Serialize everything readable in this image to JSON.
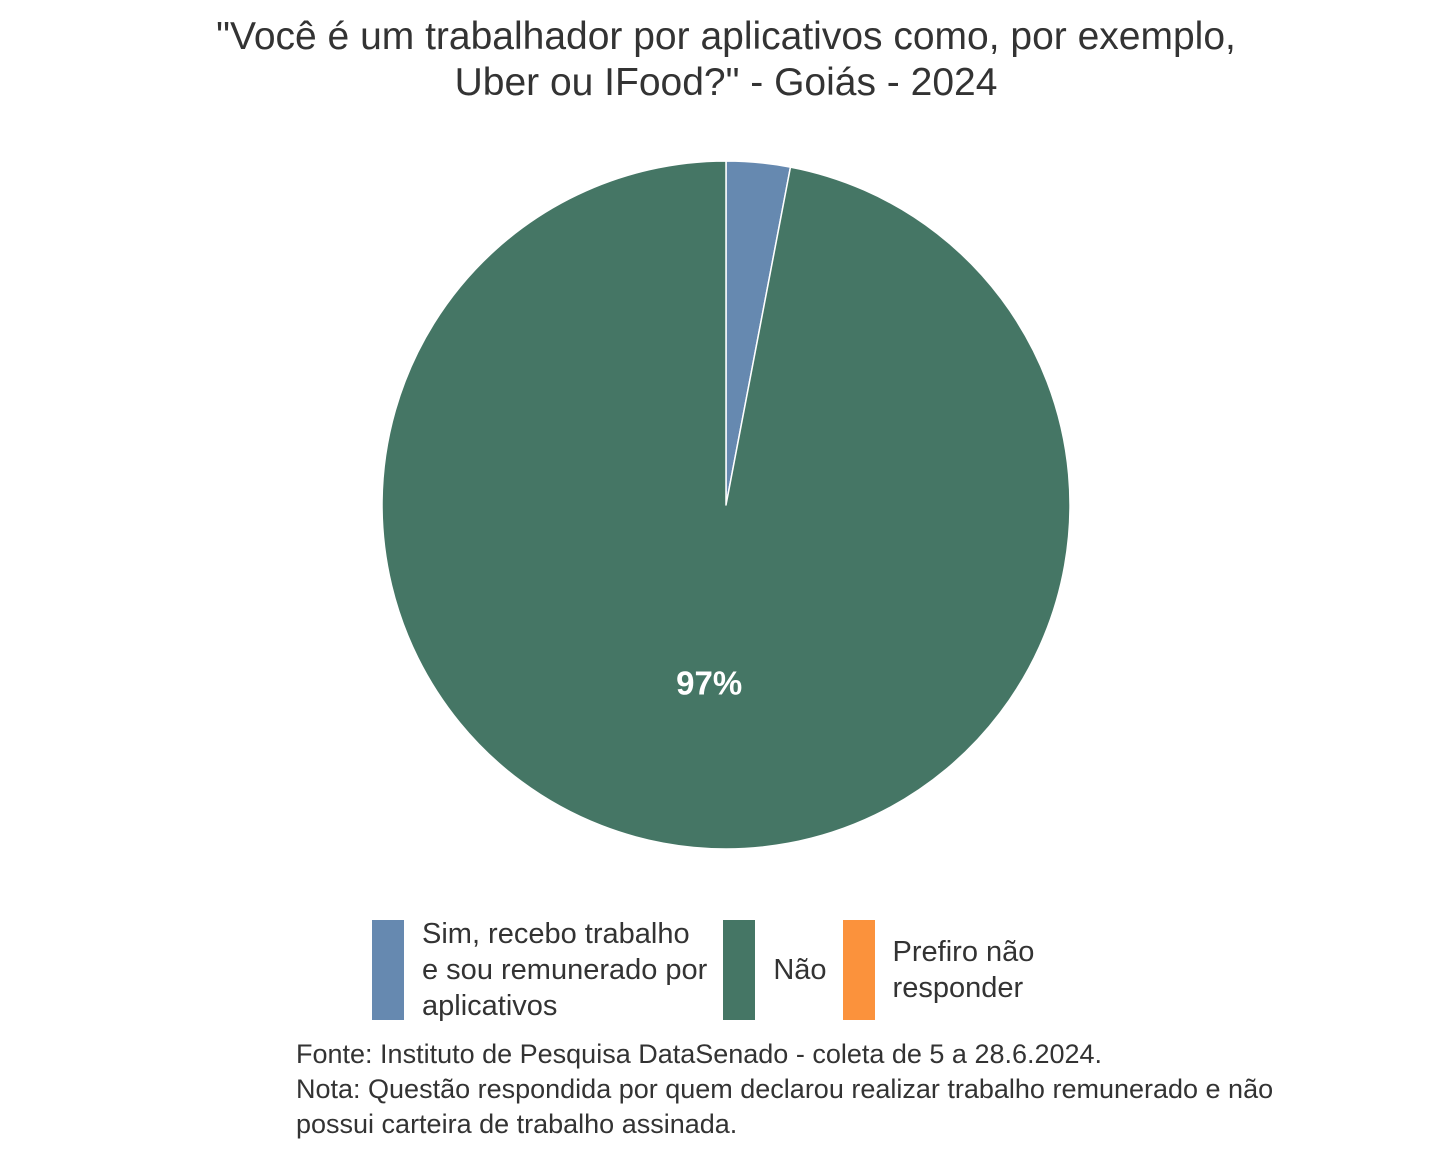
{
  "chart_data": {
    "type": "pie",
    "title_lines": [
      "\"Você é um trabalhador por aplicativos como, por exemplo,",
      "Uber ou IFood?\" - Goiás - 2024"
    ],
    "slices": [
      {
        "label_lines": [
          "Sim, recebo trabalho",
          "e sou remunerado por",
          "aplicativos"
        ],
        "value": 3,
        "color": "#6689B0",
        "data_label": ""
      },
      {
        "label_lines": [
          "Não"
        ],
        "value": 97,
        "color": "#457665",
        "data_label": "97%"
      },
      {
        "label_lines": [
          "Prefiro não",
          "responder"
        ],
        "value": 0,
        "color": "#FB923C",
        "data_label": ""
      }
    ],
    "legend_position": "bottom",
    "start_angle": "12 o'clock",
    "direction": "clockwise"
  },
  "caption": {
    "lines": [
      "Fonte: Instituto de Pesquisa DataSenado - coleta de 5 a 28.6.2024.",
      "Nota: Questão respondida por quem declarou realizar trabalho remunerado e não",
      "possui carteira de trabalho assinada."
    ]
  }
}
